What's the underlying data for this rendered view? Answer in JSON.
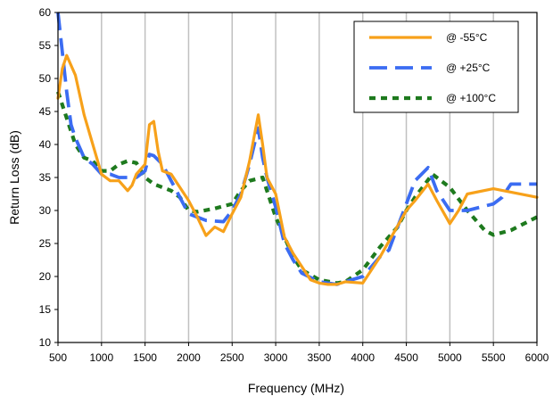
{
  "chart_data": {
    "type": "line",
    "xlabel": "Frequency (MHz)",
    "ylabel": "Return Loss (dB)",
    "xlim": [
      500,
      6000
    ],
    "ylim": [
      10,
      60
    ],
    "x_ticks": [
      "500",
      "1000",
      "1500",
      "2000",
      "2500",
      "3000",
      "3500",
      "4000",
      "4500",
      "5000",
      "5500",
      "6000"
    ],
    "y_ticks": [
      "10",
      "15",
      "20",
      "25",
      "30",
      "35",
      "40",
      "45",
      "50",
      "55",
      "60"
    ],
    "grid": "vertical",
    "legend_position": "top-right",
    "series": [
      {
        "name": "@ -55°C",
        "color": "#f7a11a",
        "style": "solid",
        "points": [
          [
            500,
            47
          ],
          [
            550,
            51.5
          ],
          [
            600,
            53.5
          ],
          [
            700,
            50.5
          ],
          [
            800,
            44.5
          ],
          [
            900,
            40
          ],
          [
            1000,
            35.5
          ],
          [
            1100,
            34.5
          ],
          [
            1200,
            34.5
          ],
          [
            1300,
            33
          ],
          [
            1350,
            33.8
          ],
          [
            1400,
            35.5
          ],
          [
            1500,
            37
          ],
          [
            1550,
            43
          ],
          [
            1600,
            43.5
          ],
          [
            1650,
            39
          ],
          [
            1700,
            36
          ],
          [
            1800,
            35.5
          ],
          [
            2000,
            31.5
          ],
          [
            2100,
            29
          ],
          [
            2200,
            26.2
          ],
          [
            2300,
            27.5
          ],
          [
            2400,
            26.8
          ],
          [
            2500,
            29.5
          ],
          [
            2600,
            32
          ],
          [
            2700,
            37.5
          ],
          [
            2800,
            44.5
          ],
          [
            2850,
            40
          ],
          [
            2900,
            35
          ],
          [
            3000,
            32.5
          ],
          [
            3100,
            26
          ],
          [
            3200,
            23.5
          ],
          [
            3300,
            21.5
          ],
          [
            3400,
            19.5
          ],
          [
            3500,
            19
          ],
          [
            3600,
            18.8
          ],
          [
            3700,
            18.8
          ],
          [
            3800,
            19.2
          ],
          [
            4000,
            19
          ],
          [
            4200,
            23
          ],
          [
            4500,
            30
          ],
          [
            4600,
            31.5
          ],
          [
            4750,
            34
          ],
          [
            4850,
            31.5
          ],
          [
            5000,
            28
          ],
          [
            5100,
            30
          ],
          [
            5200,
            32.5
          ],
          [
            5500,
            33.3
          ],
          [
            6000,
            32
          ]
        ]
      },
      {
        "name": "@ +25°C",
        "color": "#3b6cf2",
        "style": "longdash",
        "points": [
          [
            500,
            60
          ],
          [
            550,
            54
          ],
          [
            600,
            48
          ],
          [
            650,
            43
          ],
          [
            700,
            41
          ],
          [
            800,
            38
          ],
          [
            900,
            37
          ],
          [
            1000,
            35.5
          ],
          [
            1100,
            35.5
          ],
          [
            1200,
            35
          ],
          [
            1300,
            35
          ],
          [
            1400,
            35
          ],
          [
            1500,
            36
          ],
          [
            1550,
            38.5
          ],
          [
            1600,
            38.3
          ],
          [
            1700,
            37
          ],
          [
            1800,
            34.5
          ],
          [
            2000,
            29.5
          ],
          [
            2200,
            28.5
          ],
          [
            2400,
            28.3
          ],
          [
            2500,
            30
          ],
          [
            2600,
            32.5
          ],
          [
            2700,
            37
          ],
          [
            2800,
            42.5
          ],
          [
            2850,
            38
          ],
          [
            2900,
            35
          ],
          [
            3000,
            30.5
          ],
          [
            3100,
            25
          ],
          [
            3200,
            22.5
          ],
          [
            3300,
            20.5
          ],
          [
            3500,
            19.2
          ],
          [
            3700,
            18.8
          ],
          [
            3800,
            19.2
          ],
          [
            4000,
            20
          ],
          [
            4200,
            23
          ],
          [
            4300,
            24
          ],
          [
            4500,
            31
          ],
          [
            4600,
            34.5
          ],
          [
            4750,
            36.5
          ],
          [
            4850,
            33
          ],
          [
            5000,
            30
          ],
          [
            5200,
            30
          ],
          [
            5500,
            31
          ],
          [
            5600,
            32
          ],
          [
            5700,
            34
          ],
          [
            6000,
            34
          ]
        ]
      },
      {
        "name": "@ +100°C",
        "color": "#1e7a1e",
        "style": "shortdash",
        "points": [
          [
            500,
            48
          ],
          [
            600,
            44
          ],
          [
            700,
            40
          ],
          [
            800,
            38
          ],
          [
            900,
            37.5
          ],
          [
            1000,
            36
          ],
          [
            1100,
            36
          ],
          [
            1200,
            37
          ],
          [
            1300,
            37.5
          ],
          [
            1400,
            37.2
          ],
          [
            1500,
            35
          ],
          [
            1600,
            34
          ],
          [
            1700,
            33.5
          ],
          [
            1800,
            33
          ],
          [
            1900,
            32
          ],
          [
            2000,
            30
          ],
          [
            2100,
            29.8
          ],
          [
            2300,
            30.3
          ],
          [
            2500,
            31
          ],
          [
            2600,
            33
          ],
          [
            2700,
            34.5
          ],
          [
            2850,
            35
          ],
          [
            2900,
            33
          ],
          [
            3000,
            29
          ],
          [
            3100,
            26
          ],
          [
            3200,
            23
          ],
          [
            3300,
            21
          ],
          [
            3500,
            19.5
          ],
          [
            3700,
            19
          ],
          [
            3800,
            19.2
          ],
          [
            4000,
            21
          ],
          [
            4200,
            24.5
          ],
          [
            4400,
            27.5
          ],
          [
            4500,
            30
          ],
          [
            4600,
            32
          ],
          [
            4800,
            35.5
          ],
          [
            5000,
            33.5
          ],
          [
            5200,
            30
          ],
          [
            5400,
            27
          ],
          [
            5500,
            26.3
          ],
          [
            5700,
            27
          ],
          [
            6000,
            29
          ]
        ]
      }
    ]
  }
}
